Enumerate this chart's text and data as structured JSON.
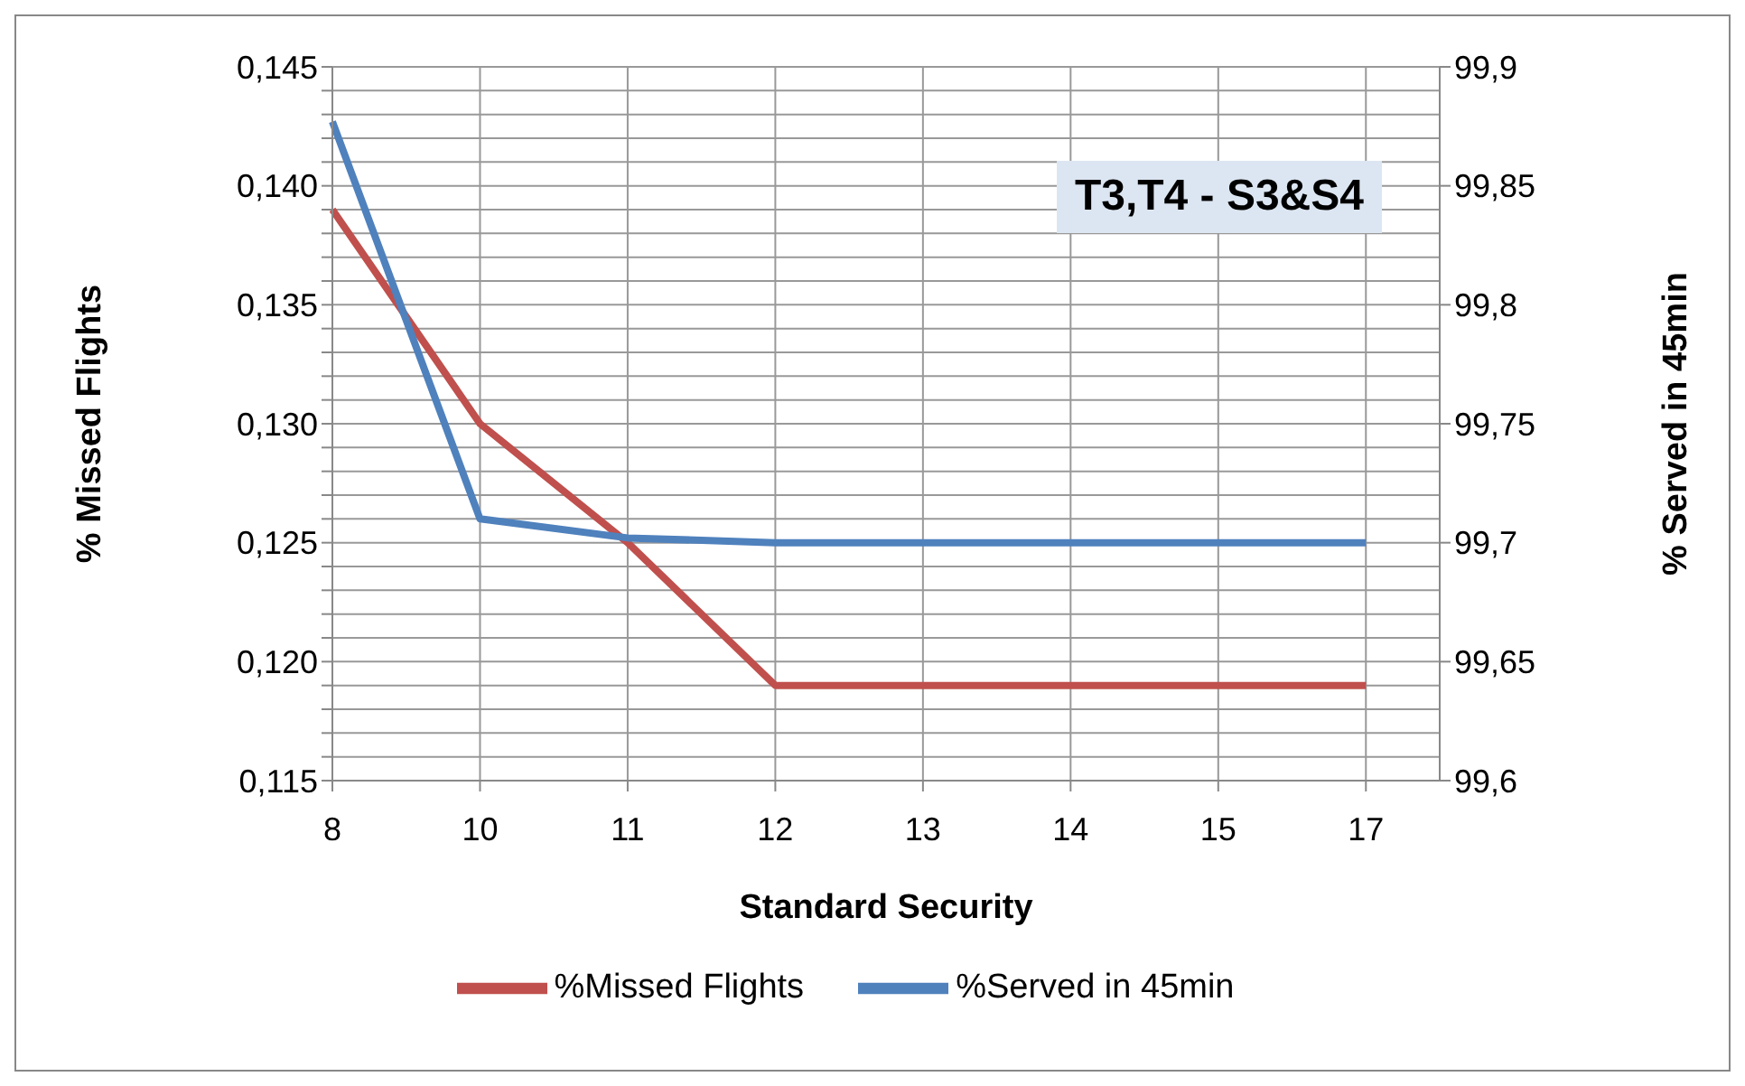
{
  "chart_data": {
    "type": "line",
    "xlabel": "Standard Security",
    "ylabel": "% Missed Flights",
    "y2label": "% Served in 45min",
    "annotations": [
      "T3,T4 - S3&S4"
    ],
    "categories": [
      "8",
      "10",
      "11",
      "12",
      "13",
      "14",
      "15",
      "17"
    ],
    "series": [
      {
        "name": "%Missed Flights",
        "color": "#c0504d",
        "values": [
          0.139,
          0.13,
          0.125,
          0.119,
          0.119,
          0.119,
          0.119,
          0.119
        ]
      },
      {
        "name": "%Served in 45min",
        "color": "#4f81bd",
        "axis": "y2",
        "values": [
          99.877,
          99.71,
          99.702,
          99.7,
          99.7,
          99.7,
          99.7,
          99.7
        ]
      }
    ],
    "ylim": [
      0.115,
      0.145
    ],
    "yticks": [
      {
        "value": 0.115,
        "label": "0,115"
      },
      {
        "value": 0.116,
        "label": null
      },
      {
        "value": 0.117,
        "label": null
      },
      {
        "value": 0.118,
        "label": null
      },
      {
        "value": 0.119,
        "label": null
      },
      {
        "value": 0.12,
        "label": "0,120"
      },
      {
        "value": 0.121,
        "label": null
      },
      {
        "value": 0.122,
        "label": null
      },
      {
        "value": 0.123,
        "label": null
      },
      {
        "value": 0.124,
        "label": null
      },
      {
        "value": 0.125,
        "label": "0,125"
      },
      {
        "value": 0.126,
        "label": null
      },
      {
        "value": 0.127,
        "label": null
      },
      {
        "value": 0.128,
        "label": null
      },
      {
        "value": 0.129,
        "label": null
      },
      {
        "value": 0.13,
        "label": "0,130"
      },
      {
        "value": 0.131,
        "label": null
      },
      {
        "value": 0.132,
        "label": null
      },
      {
        "value": 0.133,
        "label": null
      },
      {
        "value": 0.134,
        "label": null
      },
      {
        "value": 0.135,
        "label": "0,135"
      },
      {
        "value": 0.136,
        "label": null
      },
      {
        "value": 0.137,
        "label": null
      },
      {
        "value": 0.138,
        "label": null
      },
      {
        "value": 0.139,
        "label": null
      },
      {
        "value": 0.14,
        "label": "0,140"
      },
      {
        "value": 0.141,
        "label": null
      },
      {
        "value": 0.142,
        "label": null
      },
      {
        "value": 0.143,
        "label": null
      },
      {
        "value": 0.144,
        "label": null
      },
      {
        "value": 0.145,
        "label": "0,145"
      }
    ],
    "y2lim": [
      99.6,
      99.9
    ],
    "y2ticks": [
      {
        "value": 99.6,
        "label": "99,6"
      },
      {
        "value": 99.65,
        "label": "99,65"
      },
      {
        "value": 99.7,
        "label": "99,7"
      },
      {
        "value": 99.75,
        "label": "99,75"
      },
      {
        "value": 99.8,
        "label": "99,8"
      },
      {
        "value": 99.85,
        "label": "99,85"
      },
      {
        "value": 99.9,
        "label": "99,9"
      }
    ],
    "grid": true,
    "legend": "bottom",
    "marker": "none",
    "line_style": "solid"
  }
}
